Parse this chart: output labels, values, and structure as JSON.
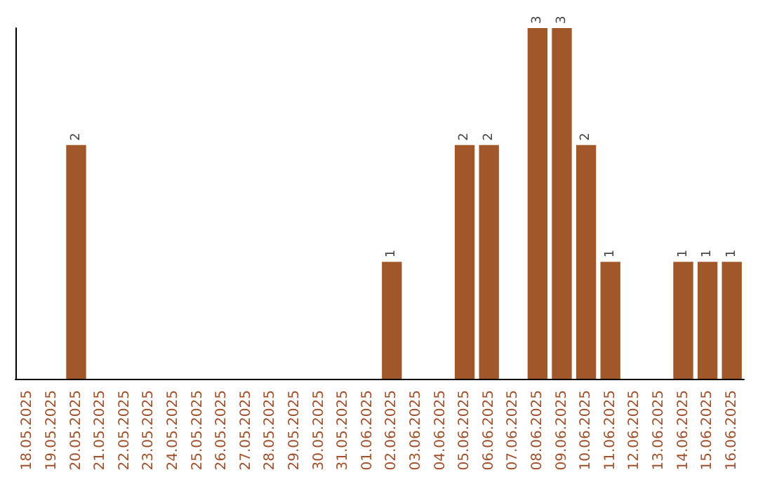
{
  "chart_data": {
    "type": "bar",
    "categories": [
      "18.05.2025",
      "19.05.2025",
      "20.05.2025",
      "21.05.2025",
      "22.05.2025",
      "23.05.2025",
      "24.05.2025",
      "25.05.2025",
      "26.05.2025",
      "27.05.2025",
      "28.05.2025",
      "29.05.2025",
      "30.05.2025",
      "31.05.2025",
      "01.06.2025",
      "02.06.2025",
      "03.06.2025",
      "04.06.2025",
      "05.06.2025",
      "06.06.2025",
      "07.06.2025",
      "08.06.2025",
      "09.06.2025",
      "10.06.2025",
      "11.06.2025",
      "12.06.2025",
      "13.06.2025",
      "14.06.2025",
      "15.06.2025",
      "16.06.2025"
    ],
    "values": [
      0,
      0,
      2,
      0,
      0,
      0,
      0,
      0,
      0,
      0,
      0,
      0,
      0,
      0,
      0,
      1,
      0,
      0,
      2,
      2,
      0,
      3,
      3,
      2,
      1,
      0,
      0,
      1,
      1,
      1
    ],
    "value_labels": [
      null,
      null,
      "2",
      null,
      null,
      null,
      null,
      null,
      null,
      null,
      null,
      null,
      null,
      null,
      null,
      "1",
      null,
      null,
      "2",
      "2",
      null,
      "3",
      "3",
      "2",
      "1",
      null,
      null,
      "1",
      "1",
      "1"
    ],
    "color": "#a0572a",
    "ylim": [
      0,
      3
    ],
    "tick_labels": "x"
  }
}
